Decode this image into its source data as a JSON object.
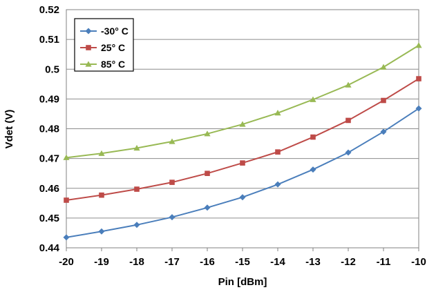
{
  "chart_data": {
    "type": "line",
    "title": "",
    "xlabel": "Pin [dBm]",
    "ylabel": "Vdet (V)",
    "x": [
      -20,
      -19,
      -18,
      -17,
      -16,
      -15,
      -14,
      -13,
      -12,
      -11,
      -10
    ],
    "xlim": [
      -20,
      -10
    ],
    "ylim": [
      0.44,
      0.52
    ],
    "x_ticks": [
      "-20",
      "-19",
      "-18",
      "-17",
      "-16",
      "-15",
      "-14",
      "-13",
      "-12",
      "-11",
      "-10"
    ],
    "y_ticks": [
      "0.44",
      "0.45",
      "0.46",
      "0.47",
      "0.48",
      "0.49",
      "0.5",
      "0.51",
      "0.52"
    ],
    "grid": true,
    "legend_position": "top-left",
    "series": [
      {
        "name": "-30° C",
        "color": "#4a7ebb",
        "marker": "diamond",
        "values": [
          0.4435,
          0.4455,
          0.4477,
          0.4503,
          0.4535,
          0.457,
          0.4613,
          0.4663,
          0.472,
          0.479,
          0.4868
        ]
      },
      {
        "name": "25° C",
        "color": "#be4b48",
        "marker": "square",
        "values": [
          0.456,
          0.4577,
          0.4597,
          0.462,
          0.465,
          0.4685,
          0.4722,
          0.4772,
          0.4828,
          0.4895,
          0.4968
        ]
      },
      {
        "name": "85° C",
        "color": "#98b954",
        "marker": "triangle",
        "values": [
          0.4703,
          0.4717,
          0.4735,
          0.4757,
          0.4783,
          0.4815,
          0.4853,
          0.4898,
          0.4947,
          0.5007,
          0.508
        ]
      }
    ]
  }
}
